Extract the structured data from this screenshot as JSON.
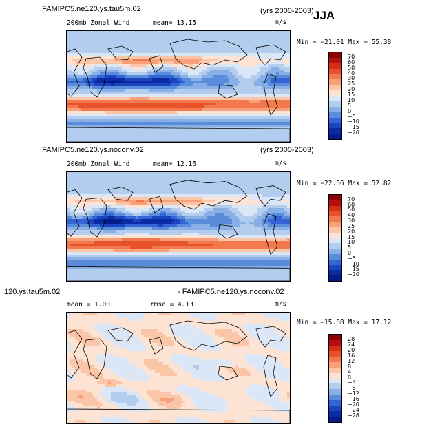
{
  "season": "JJA",
  "panels": [
    {
      "title_left": "FAMIPC5.ne120.ys.tau5m.02",
      "title_right": "(yrs 2000-2003)",
      "subtitle_left": "200mb Zonal Wind",
      "subtitle_mid": "mean=  13.15",
      "units": "m/s",
      "minmax": "Min = −21.01 Max =  55.38",
      "colorbar_labels": [
        "70",
        "60",
        "50",
        "40",
        "30",
        "25",
        "20",
        "15",
        "10",
        "5",
        "0",
        "−5",
        "−10",
        "−15",
        "−20"
      ],
      "colorbar_colors": [
        "#8b0000",
        "#b50e0e",
        "#d62f16",
        "#e8522b",
        "#f2794d",
        "#f7a07a",
        "#fbc5a8",
        "#fde3d3",
        "#dbe7f6",
        "#b3cdee",
        "#88b0e6",
        "#5a8cdc",
        "#3366d4",
        "#1b45c0",
        "#0a2ba4",
        "#041c8a"
      ],
      "pattern": "full"
    },
    {
      "title_left": "FAMIPC5.ne120.ys.noconv.02",
      "title_right": "(yrs 2000-2003)",
      "subtitle_left": "200mb Zonal Wind",
      "subtitle_mid": "mean=  12.16",
      "units": "m/s",
      "minmax": "Min = −22.56 Max =  52.82",
      "colorbar_labels": [
        "70",
        "60",
        "50",
        "40",
        "30",
        "25",
        "20",
        "15",
        "10",
        "5",
        "0",
        "−5",
        "−10",
        "−15",
        "−20"
      ],
      "colorbar_colors": [
        "#8b0000",
        "#b50e0e",
        "#d62f16",
        "#e8522b",
        "#f2794d",
        "#f7a07a",
        "#fbc5a8",
        "#fde3d3",
        "#dbe7f6",
        "#b3cdee",
        "#88b0e6",
        "#5a8cdc",
        "#3366d4",
        "#1b45c0",
        "#0a2ba4",
        "#041c8a"
      ],
      "pattern": "full"
    },
    {
      "title_left": "120.ys.tau5m.02",
      "title_right": "- FAMIPC5.ne120.ys.noconv.02",
      "subtitle_left": "mean =   1.00",
      "subtitle_mid": "rmse =   4.13",
      "units": "m/s",
      "minmax": "Min = −15.08 Max =  17.12",
      "colorbar_labels": [
        "28",
        "24",
        "20",
        "16",
        "12",
        "8",
        "4",
        "0",
        "−4",
        "−8",
        "−12",
        "−16",
        "−20",
        "−24",
        "−28"
      ],
      "colorbar_colors": [
        "#8b0000",
        "#b50e0e",
        "#d62f16",
        "#e8522b",
        "#f2794d",
        "#f7a07a",
        "#fbc5a8",
        "#fde3d3",
        "#dbe7f6",
        "#b3cdee",
        "#88b0e6",
        "#5a8cdc",
        "#3366d4",
        "#1b45c0",
        "#0a2ba4",
        "#041c8a"
      ],
      "pattern": "diff"
    }
  ],
  "chart_data": [
    {
      "type": "heatmap",
      "title": "FAMIPC5.ne120.ys.tau5m.02",
      "subtitle": "200mb Zonal Wind",
      "units": "m/s",
      "mean": 13.15,
      "min": -21.01,
      "max": 55.38,
      "colorbar_levels": [
        70,
        60,
        50,
        40,
        30,
        25,
        20,
        15,
        10,
        5,
        0,
        -5,
        -10,
        -15,
        -20
      ]
    },
    {
      "type": "heatmap",
      "title": "FAMIPC5.ne120.ys.noconv.02",
      "subtitle": "200mb Zonal Wind",
      "units": "m/s",
      "mean": 12.16,
      "min": -22.56,
      "max": 52.82,
      "colorbar_levels": [
        70,
        60,
        50,
        40,
        30,
        25,
        20,
        15,
        10,
        5,
        0,
        -5,
        -10,
        -15,
        -20
      ]
    },
    {
      "type": "heatmap",
      "title": "120.ys.tau5m.02 - FAMIPC5.ne120.ys.noconv.02",
      "units": "m/s",
      "mean": 1.0,
      "rmse": 4.13,
      "min": -15.08,
      "max": 17.12,
      "colorbar_levels": [
        28,
        24,
        20,
        16,
        12,
        8,
        4,
        0,
        -4,
        -8,
        -12,
        -16,
        -20,
        -24,
        -28
      ]
    }
  ]
}
